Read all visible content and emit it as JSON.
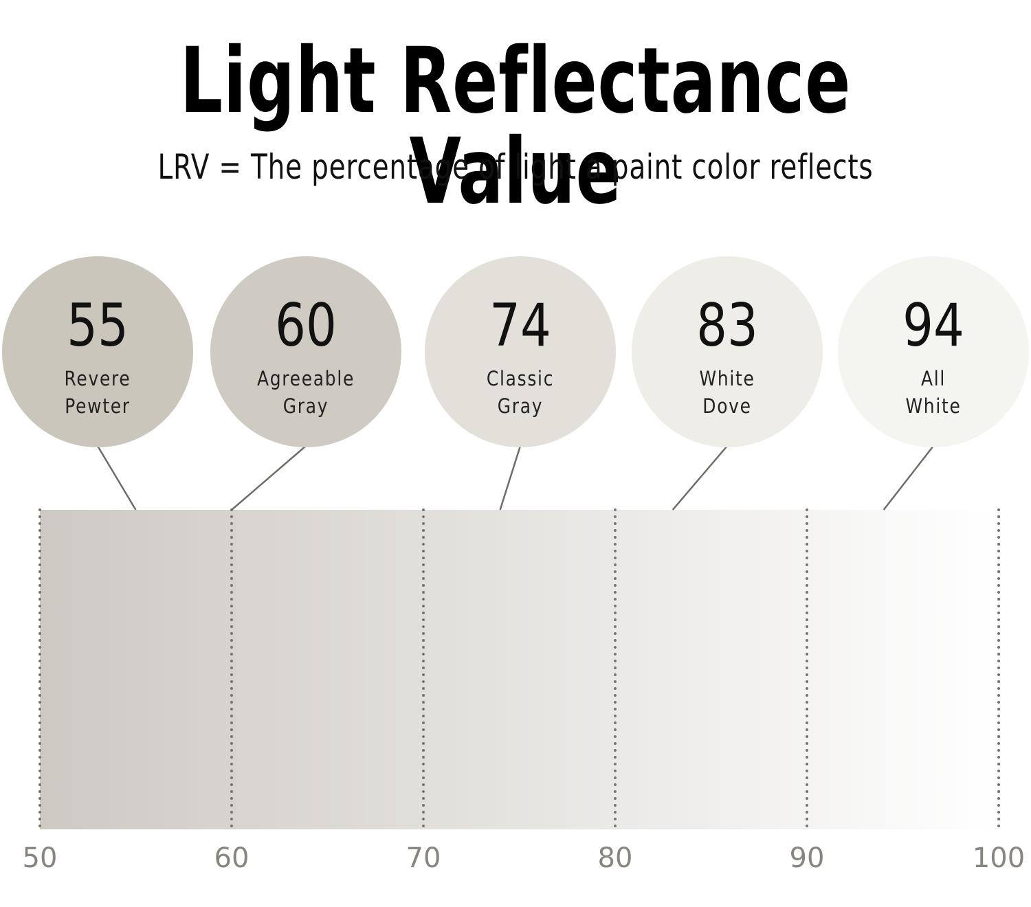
{
  "title": "Light Reflectance Value",
  "subtitle": "LRV = The percentage of light a paint color reflects",
  "chart_data": {
    "type": "bar",
    "title": "Light Reflectance Value",
    "subtitle": "LRV = The percentage of light a paint color reflects",
    "xlim": [
      50,
      100
    ],
    "ticks": [
      50,
      60,
      70,
      80,
      90,
      100
    ],
    "tick_labels": [
      "50",
      "60",
      "70",
      "80",
      "90",
      "100"
    ],
    "gradient_colors": [
      "#cdc9c3",
      "#ffffff"
    ],
    "points": [
      {
        "value": 55,
        "label": "55",
        "name_lines": [
          "Revere",
          "Pewter"
        ],
        "color": "#cbc6bc"
      },
      {
        "value": 60,
        "label": "60",
        "name_lines": [
          "Agreeable",
          "Gray"
        ],
        "color": "#d0cbc2"
      },
      {
        "value": 74,
        "label": "74",
        "name_lines": [
          "Classic",
          "Gray"
        ],
        "color": "#e3e0da"
      },
      {
        "value": 83,
        "label": "83",
        "name_lines": [
          "White",
          "Dove"
        ],
        "color": "#eeede7"
      },
      {
        "value": 94,
        "label": "94",
        "name_lines": [
          "All",
          "White"
        ],
        "color": "#f4f4f0"
      }
    ]
  }
}
